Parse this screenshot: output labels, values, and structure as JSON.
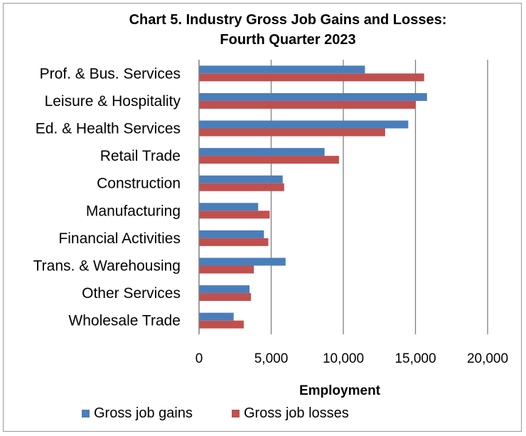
{
  "chart_data": {
    "type": "bar",
    "orientation": "horizontal",
    "title_lines": [
      "Chart 5. Industry Gross Job Gains and Losses:",
      "Fourth Quarter 2023"
    ],
    "categories": [
      "Prof. & Bus. Services",
      "Leisure & Hospitality",
      "Ed. & Health Services",
      "Retail Trade",
      "Construction",
      "Manufacturing",
      "Financial Activities",
      "Trans. & Warehousing",
      "Other Services",
      "Wholesale Trade"
    ],
    "series": [
      {
        "name": "Gross job gains",
        "color": "#4a7ebb",
        "values": [
          11500,
          15800,
          14500,
          8700,
          5800,
          4100,
          4500,
          6000,
          3500,
          2400
        ]
      },
      {
        "name": "Gross job losses",
        "color": "#c0504d",
        "values": [
          15600,
          15000,
          12900,
          9700,
          5900,
          4900,
          4800,
          3800,
          3600,
          3100
        ]
      }
    ],
    "xlabel": "Employment",
    "ylabel": "",
    "xlim": [
      0,
      20000
    ],
    "xticks": [
      0,
      5000,
      10000,
      15000,
      20000
    ],
    "xtick_labels": [
      "0",
      "5,000",
      "10,000",
      "15,000",
      "20,000"
    ],
    "grid": "vertical",
    "legend_position": "bottom"
  }
}
